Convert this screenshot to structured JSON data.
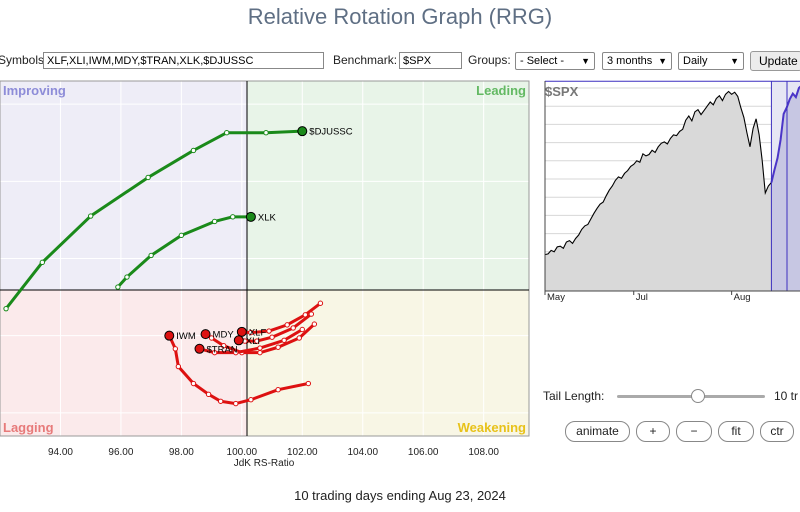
{
  "title": "Relative Rotation Graph (RRG)",
  "controls": {
    "symbols_label": "Symbols:",
    "symbols_value": "XLF,XLI,IWM,MDY,$TRAN,XLK,$DJUSSC",
    "benchmark_label": "Benchmark:",
    "benchmark_value": "$SPX",
    "groups_label": "Groups:",
    "groups_value": "- Select -",
    "period_value": "3 months",
    "frequency_value": "Daily",
    "update_label": "Update"
  },
  "chart_data": [
    {
      "type": "scatter",
      "title": "",
      "xlabel": "JdK RS-Ratio",
      "ylabel": "",
      "xlim": [
        92.0,
        109.5
      ],
      "ylim": [
        97.7,
        102.3
      ],
      "xticks": [
        "94.00",
        "96.00",
        "98.00",
        "100.00",
        "102.00",
        "104.00",
        "106.00",
        "108.00"
      ],
      "quadrants": {
        "improving": "Improving",
        "leading": "Leading",
        "lagging": "Lagging",
        "weakening": "Weakening"
      },
      "grid": true,
      "series": [
        {
          "name": "$DJUSSC",
          "color": "#1a8a1a",
          "x": [
            92.2,
            93.4,
            95.0,
            96.9,
            98.4,
            99.5,
            100.8,
            102.0
          ],
          "y": [
            99.35,
            99.95,
            100.55,
            101.05,
            101.4,
            101.63,
            101.63,
            101.65
          ]
        },
        {
          "name": "XLK",
          "color": "#1a8a1a",
          "x": [
            95.9,
            96.2,
            97.0,
            98.0,
            99.1,
            99.7,
            100.3
          ],
          "y": [
            99.63,
            99.76,
            100.04,
            100.3,
            100.48,
            100.54,
            100.54
          ]
        },
        {
          "name": "IWM",
          "color": "#dd1111",
          "x": [
            102.2,
            101.2,
            100.3,
            99.8,
            99.3,
            98.9,
            98.4,
            97.9,
            97.8,
            97.6
          ],
          "y": [
            98.38,
            98.3,
            98.17,
            98.12,
            98.15,
            98.24,
            98.38,
            98.6,
            98.83,
            99.0
          ]
        },
        {
          "name": "MDY",
          "color": "#dd1111",
          "x": [
            102.4,
            101.9,
            101.2,
            100.6,
            100.0,
            99.4,
            99.0,
            98.8
          ],
          "y": [
            99.15,
            98.97,
            98.85,
            98.78,
            98.78,
            98.87,
            98.97,
            99.02
          ]
        },
        {
          "name": "XLF",
          "color": "#dd1111",
          "x": [
            102.6,
            102.1,
            101.5,
            100.9,
            100.3,
            100.0
          ],
          "y": [
            99.42,
            99.27,
            99.14,
            99.06,
            99.04,
            99.05
          ]
        },
        {
          "name": "XLI",
          "color": "#dd1111",
          "x": [
            102.3,
            101.7,
            101.0,
            100.5,
            100.1,
            99.9
          ],
          "y": [
            99.28,
            99.1,
            98.98,
            98.93,
            98.93,
            98.94
          ]
        },
        {
          "name": "$TRAN",
          "color": "#dd1111",
          "x": [
            102.0,
            101.4,
            100.6,
            99.8,
            99.1,
            98.6
          ],
          "y": [
            99.08,
            98.94,
            98.84,
            98.78,
            98.78,
            98.83
          ]
        }
      ]
    },
    {
      "type": "line",
      "title": "$SPX",
      "x_labels": [
        "May",
        "Jul",
        "Aug"
      ],
      "highlight": "last 10 trading days",
      "values": [
        52,
        53,
        58,
        56,
        63,
        64,
        61,
        70,
        72,
        68,
        75,
        80,
        88,
        93,
        95,
        103,
        111,
        118,
        124,
        127,
        136,
        144,
        150,
        158,
        163,
        161,
        168,
        172,
        178,
        181,
        186,
        184,
        196,
        193,
        195,
        201,
        198,
        206,
        211,
        213,
        210,
        218,
        223,
        222,
        228,
        231,
        244,
        250,
        243,
        256,
        259,
        252,
        258,
        264,
        270,
        266,
        275,
        279,
        272,
        281,
        285,
        281,
        284,
        278,
        262,
        248,
        226,
        206,
        232,
        246,
        223,
        186,
        140,
        150,
        155,
        173,
        190,
        216,
        253,
        262,
        274,
        282,
        277,
        290,
        294
      ]
    }
  ],
  "tail": {
    "label": "Tail Length:",
    "value_text": "10 tr",
    "fraction": 0.55
  },
  "buttons": {
    "animate": "animate",
    "plus": "+",
    "minus": "−",
    "fit": "fit",
    "ctr": "ctr"
  },
  "footer": "10 trading days ending Aug 23, 2024"
}
